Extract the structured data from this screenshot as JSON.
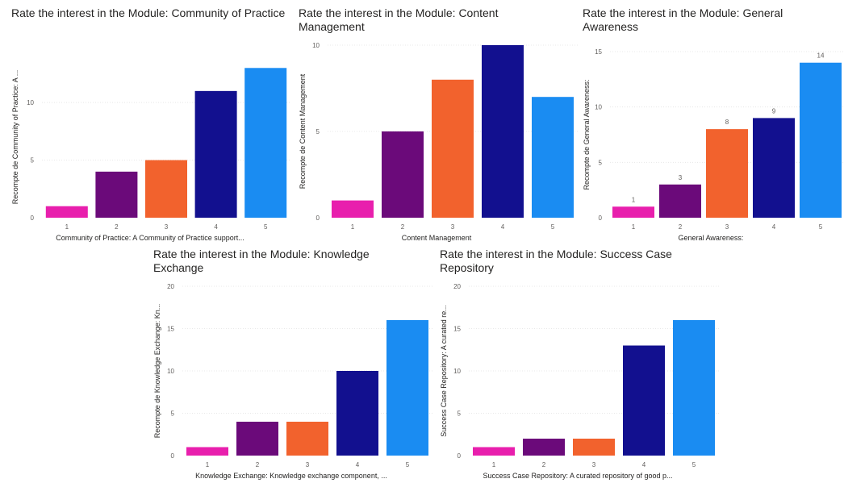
{
  "chart_data": [
    {
      "type": "bar",
      "title": "Rate the interest in the Module: Community of Practice",
      "xlabel": "Community of Practice: A Community of Practice support...",
      "ylabel": "Recompte de Community of Practice: A ...",
      "categories": [
        "1",
        "2",
        "3",
        "4",
        "5"
      ],
      "values": [
        1,
        4,
        5,
        11,
        13
      ],
      "colors": [
        "#e81fad",
        "#6b0a7a",
        "#f2622d",
        "#12108f",
        "#1a8cf2"
      ],
      "yticks": [
        0,
        5,
        10
      ],
      "ylim": [
        0,
        14
      ],
      "data_labels": false,
      "grid": true
    },
    {
      "type": "bar",
      "title": "Rate the interest in the Module: Content Management",
      "xlabel": "Content Management",
      "ylabel": "Recompte de Content Management",
      "categories": [
        "1",
        "2",
        "3",
        "4",
        "5"
      ],
      "values": [
        1,
        5,
        8,
        10,
        7
      ],
      "colors": [
        "#e81fad",
        "#6b0a7a",
        "#f2622d",
        "#12108f",
        "#1a8cf2"
      ],
      "yticks": [
        0,
        5,
        10
      ],
      "ylim": [
        0,
        10
      ],
      "data_labels": false,
      "grid": true
    },
    {
      "type": "bar",
      "title": "Rate the interest in the Module: General Awareness",
      "xlabel": "General Awareness:",
      "ylabel": "Recompte de General Awareness:",
      "categories": [
        "1",
        "2",
        "3",
        "4",
        "5"
      ],
      "values": [
        1,
        3,
        8,
        9,
        14
      ],
      "colors": [
        "#e81fad",
        "#6b0a7a",
        "#f2622d",
        "#12108f",
        "#1a8cf2"
      ],
      "yticks": [
        0,
        5,
        10,
        15
      ],
      "ylim": [
        0,
        15
      ],
      "data_labels": true,
      "grid": true
    },
    {
      "type": "bar",
      "title": "Rate the interest in the Module: Knowledge Exchange",
      "xlabel": "Knowledge Exchange: Knowledge exchange component, ...",
      "ylabel": "Recompte de Knowledge Exchange: Kn...",
      "categories": [
        "1",
        "2",
        "3",
        "4",
        "5"
      ],
      "values": [
        1,
        4,
        4,
        10,
        16
      ],
      "colors": [
        "#e81fad",
        "#6b0a7a",
        "#f2622d",
        "#12108f",
        "#1a8cf2"
      ],
      "yticks": [
        0,
        5,
        10,
        15,
        20
      ],
      "ylim": [
        0,
        20
      ],
      "data_labels": false,
      "grid": true
    },
    {
      "type": "bar",
      "title": "Rate the interest in the Module: Success Case Repository",
      "xlabel": "Success Case Repository: A curated repository of good p...",
      "ylabel": "Success Case Repository: A curated re...",
      "categories": [
        "1",
        "2",
        "3",
        "4",
        "5"
      ],
      "values": [
        1,
        2,
        2,
        13,
        16
      ],
      "colors": [
        "#e81fad",
        "#6b0a7a",
        "#f2622d",
        "#12108f",
        "#1a8cf2"
      ],
      "yticks": [
        0,
        5,
        10,
        15,
        20
      ],
      "ylim": [
        0,
        20
      ],
      "data_labels": false,
      "grid": true
    }
  ]
}
